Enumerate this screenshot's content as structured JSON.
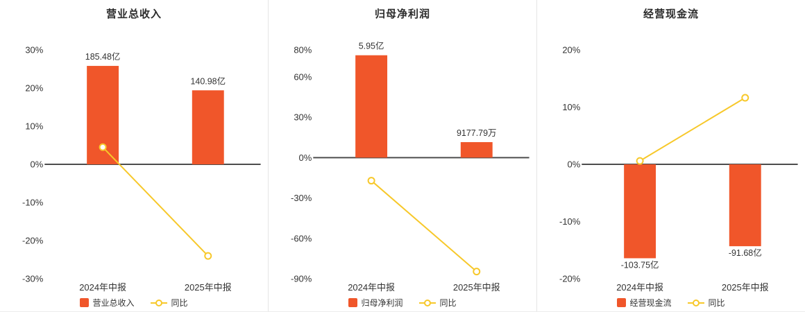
{
  "colors": {
    "bar": "#f0562a",
    "line": "#f7c82a",
    "axis_line": "#4d4d4d",
    "text": "#333333",
    "title": "#2b2b2b",
    "divider": "#e6e6e6",
    "background": "#ffffff"
  },
  "chart_data": [
    {
      "type": "bar",
      "title": "营业总收入",
      "categories": [
        "2024年中报",
        "2025年中报"
      ],
      "bar_series": {
        "name": "营业总收入",
        "value_labels": [
          "185.48亿",
          "140.98亿"
        ],
        "display_pct": [
          25.8,
          19.4
        ]
      },
      "line_series": {
        "name": "同比",
        "values_pct": [
          4.5,
          -23.99
        ]
      },
      "y_axis": {
        "min": -30,
        "max": 30,
        "ticks": [
          30,
          20,
          10,
          0,
          -10,
          -20,
          -30
        ],
        "unit": "%"
      },
      "grid": false,
      "legend_position": "bottom"
    },
    {
      "type": "bar",
      "title": "归母净利润",
      "categories": [
        "2024年中报",
        "2025年中报"
      ],
      "bar_series": {
        "name": "归母净利润",
        "value_labels": [
          "5.95亿",
          "9177.79万"
        ],
        "display_pct": [
          76,
          11.5
        ]
      },
      "line_series": {
        "name": "同比",
        "values_pct": [
          -17.1,
          -84.58
        ]
      },
      "y_axis": {
        "min": -90,
        "max": 80,
        "ticks": [
          80,
          60,
          30,
          0,
          -30,
          -60,
          -90
        ],
        "unit": "%"
      },
      "grid": false,
      "legend_position": "bottom"
    },
    {
      "type": "bar",
      "title": "经营现金流",
      "categories": [
        "2024年中报",
        "2025年中报"
      ],
      "bar_series": {
        "name": "经营现金流",
        "value_labels": [
          "-103.75亿",
          "-91.68亿"
        ],
        "display_pct": [
          -16.4,
          -14.3
        ]
      },
      "line_series": {
        "name": "同比",
        "values_pct": [
          0.6,
          11.63
        ]
      },
      "y_axis": {
        "min": -20,
        "max": 20,
        "ticks": [
          20,
          10,
          0,
          -10,
          -20
        ],
        "unit": "%"
      },
      "grid": false,
      "legend_position": "bottom"
    }
  ]
}
